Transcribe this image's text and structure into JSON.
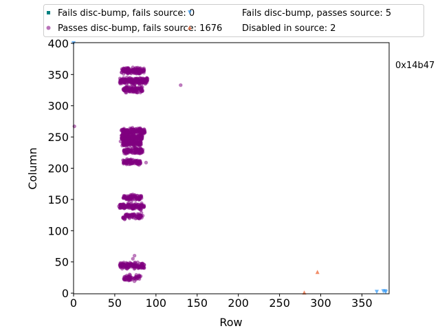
{
  "chart_data": {
    "type": "scatter",
    "title": "",
    "xlabel": "Row",
    "ylabel": "Column",
    "xlim": [
      0,
      383
    ],
    "ylim": [
      -1,
      401
    ],
    "xticks": [
      0,
      50,
      100,
      150,
      200,
      250,
      300,
      350
    ],
    "yticks": [
      0,
      50,
      100,
      150,
      200,
      250,
      300,
      350,
      400
    ],
    "grid": false,
    "legend_placement": "top, outside plot, 2 columns",
    "side_annotation": "0x14b47",
    "series": [
      {
        "name": "Fails disc-bump, fails source: 0",
        "marker": "square",
        "color": "#008080",
        "points": []
      },
      {
        "name": "Passes disc-bump, fails source: 1676",
        "marker": "circle",
        "color": "#800080",
        "clusters": [
          {
            "y": 356,
            "count": 150,
            "x_range": [
              58,
              86
            ]
          },
          {
            "y": 340,
            "count": 230,
            "x_range": [
              56,
              90
            ]
          },
          {
            "y": 326,
            "count": 110,
            "x_range": [
              60,
              84
            ]
          },
          {
            "y": 259,
            "count": 150,
            "x_range": [
              58,
              87
            ]
          },
          {
            "y": 249,
            "count": 200,
            "x_range": [
              58,
              84
            ]
          },
          {
            "y": 240,
            "count": 120,
            "x_range": [
              59,
              82
            ]
          },
          {
            "y": 228,
            "count": 110,
            "x_range": [
              61,
              84
            ]
          },
          {
            "y": 210,
            "count": 90,
            "x_range": [
              60,
              82
            ]
          },
          {
            "y": 153,
            "count": 80,
            "x_range": [
              60,
              83
            ]
          },
          {
            "y": 139,
            "count": 150,
            "x_range": [
              56,
              86
            ]
          },
          {
            "y": 123,
            "count": 80,
            "x_range": [
              60,
              83
            ]
          },
          {
            "y": 44,
            "count": 140,
            "x_range": [
              56,
              86
            ]
          },
          {
            "y": 25,
            "count": 58,
            "x_range": [
              61,
              82
            ]
          }
        ],
        "outliers": [
          [
            130,
            333
          ],
          [
            1,
            267
          ],
          [
            88,
            209
          ],
          [
            57,
            243
          ],
          [
            74,
            60
          ],
          [
            72,
            55
          ],
          [
            55,
            139
          ],
          [
            84,
            124
          ]
        ]
      },
      {
        "name": "Fails disc-bump, passes source: 5",
        "marker": "triangle-down",
        "color": "#3a9cf5",
        "points": [
          [
            0,
            400
          ],
          [
            368,
            2
          ],
          [
            376,
            3
          ],
          [
            378,
            3
          ],
          [
            379,
            2
          ]
        ]
      },
      {
        "name": "Disabled in source: 2",
        "marker": "triangle-up",
        "color": "#f07a50",
        "points": [
          [
            280,
            1
          ],
          [
            296,
            34
          ]
        ]
      }
    ]
  }
}
